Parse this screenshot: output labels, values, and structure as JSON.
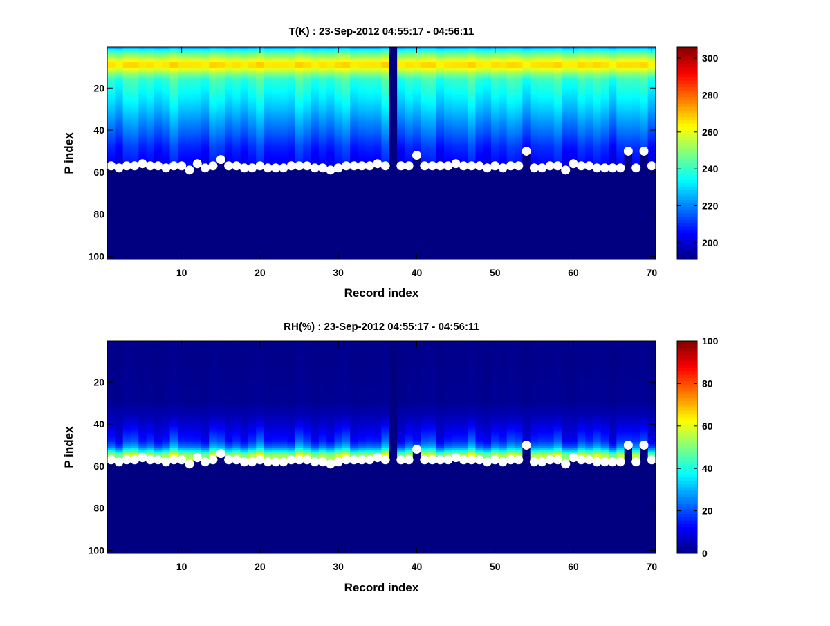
{
  "chart_data": [
    {
      "type": "heatmap",
      "title": "T(K) : 23-Sep-2012 04:55:17 - 04:56:11",
      "xlabel": "Record index",
      "ylabel": "P index",
      "xlim": [
        0.5,
        70.5
      ],
      "ylim": [
        0.5,
        101.5
      ],
      "y_reversed": true,
      "xticks": [
        10,
        20,
        30,
        40,
        50,
        60,
        70
      ],
      "yticks": [
        20,
        40,
        60,
        80,
        100
      ],
      "colormap": "jet",
      "clim": [
        191,
        306
      ],
      "colorbar_ticks": [
        200,
        220,
        240,
        260,
        280,
        300
      ],
      "profile": [
        [
          1,
          226
        ],
        [
          2,
          236
        ],
        [
          3,
          243
        ],
        [
          4,
          248
        ],
        [
          6,
          256
        ],
        [
          8,
          266
        ],
        [
          10,
          266
        ],
        [
          11,
          260
        ],
        [
          13,
          250
        ],
        [
          16,
          240
        ],
        [
          22,
          235
        ],
        [
          30,
          228
        ],
        [
          40,
          218
        ],
        [
          48,
          210
        ],
        [
          56,
          205
        ]
      ],
      "missing_records": [
        37
      ]
    },
    {
      "type": "heatmap",
      "title": "RH(%) : 23-Sep-2012 04:55:17 - 04:56:11",
      "xlabel": "Record index",
      "ylabel": "P index",
      "xlim": [
        0.5,
        70.5
      ],
      "ylim": [
        0.5,
        101.5
      ],
      "y_reversed": true,
      "xticks": [
        10,
        20,
        30,
        40,
        50,
        60,
        70
      ],
      "yticks": [
        20,
        40,
        60,
        80,
        100
      ],
      "colormap": "jet",
      "clim": [
        0,
        100
      ],
      "colorbar_ticks": [
        0,
        20,
        40,
        60,
        80,
        100
      ],
      "profile": [
        [
          1,
          1
        ],
        [
          30,
          2
        ],
        [
          36,
          5
        ],
        [
          42,
          10
        ],
        [
          48,
          16
        ],
        [
          51,
          25
        ],
        [
          53,
          38
        ],
        [
          55,
          55
        ],
        [
          57,
          58
        ]
      ],
      "missing_records": [
        37
      ]
    }
  ],
  "surface_index": [
    57,
    58,
    57,
    57,
    56,
    57,
    57,
    58,
    57,
    57,
    59,
    56,
    58,
    57,
    54,
    57,
    57,
    58,
    58,
    57,
    58,
    58,
    58,
    57,
    57,
    57,
    58,
    58,
    59,
    58,
    57,
    57,
    57,
    57,
    56,
    57,
    null,
    57,
    57,
    52,
    57,
    57,
    57,
    57,
    56,
    57,
    57,
    57,
    58,
    57,
    58,
    57,
    57,
    50,
    58,
    58,
    57,
    57,
    59,
    56,
    57,
    57,
    58,
    58,
    58,
    58,
    50,
    58,
    50,
    57
  ]
}
